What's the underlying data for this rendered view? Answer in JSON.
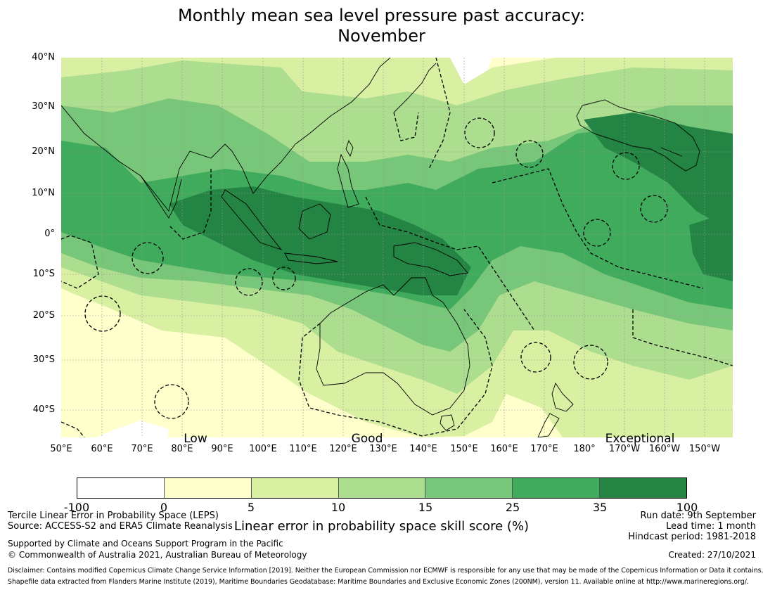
{
  "title_line1": "Monthly mean sea level pressure past accuracy:",
  "title_line2": "November",
  "map": {
    "lat_labels": [
      "40°N",
      "30°N",
      "20°N",
      "10°N",
      "0°",
      "10°S",
      "20°S",
      "30°S",
      "40°S"
    ],
    "lon_labels": [
      "50°E",
      "60°E",
      "70°E",
      "80°E",
      "90°E",
      "100°E",
      "110°E",
      "120°E",
      "130°E",
      "140°E",
      "150°E",
      "160°E",
      "170°E",
      "180°",
      "170°W",
      "160°W",
      "150°W"
    ],
    "category_labels": [
      "Low",
      "Good",
      "Exceptional"
    ],
    "colors": {
      "lt0": "#ffffff",
      "c0_5": "#ffffcc",
      "c5_10": "#d9f0a3",
      "c10_15": "#addd8e",
      "c15_25": "#78c679",
      "c25_35": "#41ab5d",
      "c35_100": "#238443"
    }
  },
  "colorbar": {
    "colors": [
      "#ffffff",
      "#ffffcc",
      "#d9f0a3",
      "#addd8e",
      "#78c679",
      "#41ab5d",
      "#238443"
    ],
    "ticks": [
      "-100",
      "0",
      "5",
      "10",
      "15",
      "25",
      "35",
      "100"
    ],
    "label": "Linear error in probability space skill score (%)"
  },
  "footer": {
    "left_line1": "Tercile Linear Error in Probability Space (LEPS)",
    "left_line2": "Source: ACCESS-S2 and ERA5 Climate Reanalysis",
    "support_line1": "Supported by Climate and Oceans Support Program in the Pacific",
    "support_line2": "© Commonwealth of Australia 2021, Australian Bureau of Meteorology",
    "run_date": "Run date: 9th September",
    "lead_time": "Lead time: 1 month",
    "hindcast": "Hindcast period: 1981-2018",
    "created": "Created: 27/10/2021",
    "disclaimer1": "Disclaimer: Contains modified Copernicus Climate Change Service Information [2019]. Neither the European Commission nor ECMWF is responsible for any use that may be made of the Copernicus Information or Data it contains.",
    "disclaimer2": "Shapefile data extracted from Flanders Marine Institute (2019), Maritime Boundaries Geodatabase: Maritime Boundaries and Exclusive Economic Zones (200NM), version 11. Available online at http://www.marineregions.org/."
  }
}
